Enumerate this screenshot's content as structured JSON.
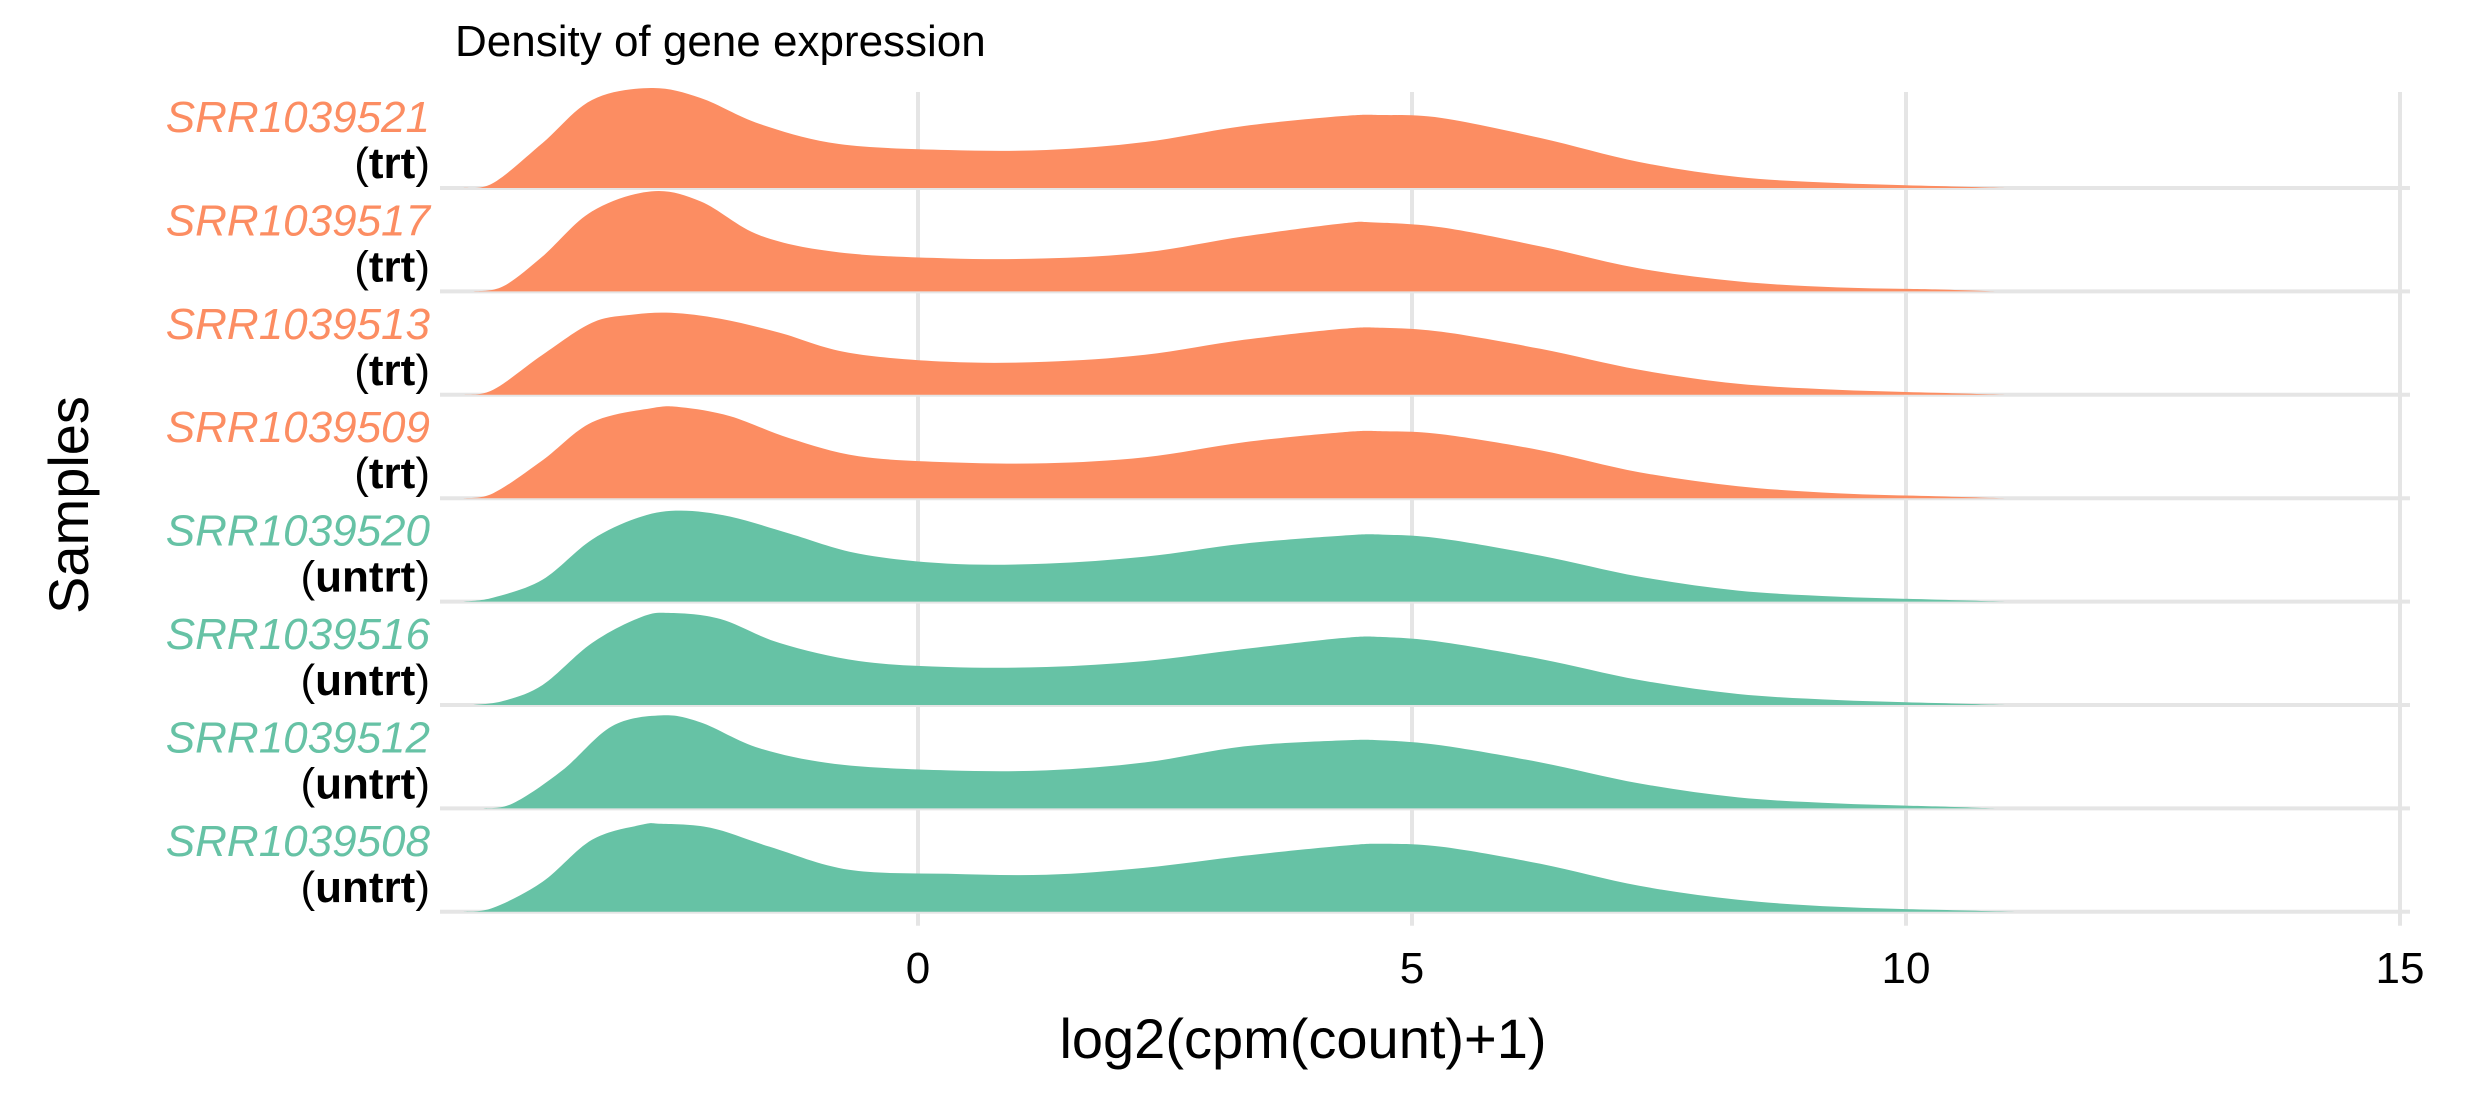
{
  "chart_data": {
    "type": "area",
    "title": "Density of gene expression",
    "xlabel": "log2(cpm(count)+1)",
    "ylabel": "Samples",
    "xlim": [
      -4.6,
      15.2
    ],
    "x_ticks": [
      0,
      5,
      10,
      15
    ],
    "x_tick_labels": [
      "0",
      "5",
      "10",
      "15"
    ],
    "grid": true,
    "legend": "none",
    "colors": {
      "trt": "#FC8D62",
      "untrt": "#66C2A5",
      "grid": "#E5E5E5",
      "text": "#000000"
    },
    "series": [
      {
        "name": "SRR1039521",
        "group": "trt",
        "x_range": [
          -4.6,
          11.0
        ],
        "points": [
          [
            -4.6,
            0.0
          ],
          [
            -4.3,
            0.05
          ],
          [
            -3.8,
            0.45
          ],
          [
            -3.3,
            0.88
          ],
          [
            -2.7,
            1.0
          ],
          [
            -2.2,
            0.9
          ],
          [
            -1.6,
            0.64
          ],
          [
            -0.8,
            0.44
          ],
          [
            0.3,
            0.38
          ],
          [
            1.3,
            0.38
          ],
          [
            2.3,
            0.46
          ],
          [
            3.3,
            0.62
          ],
          [
            4.3,
            0.72
          ],
          [
            4.7,
            0.73
          ],
          [
            5.3,
            0.7
          ],
          [
            6.3,
            0.5
          ],
          [
            7.3,
            0.26
          ],
          [
            8.3,
            0.11
          ],
          [
            9.3,
            0.05
          ],
          [
            10.3,
            0.02
          ],
          [
            11.0,
            0.0
          ]
        ]
      },
      {
        "name": "SRR1039517",
        "group": "trt",
        "x_range": [
          -4.5,
          10.9
        ],
        "points": [
          [
            -4.5,
            0.0
          ],
          [
            -4.2,
            0.05
          ],
          [
            -3.8,
            0.35
          ],
          [
            -3.3,
            0.8
          ],
          [
            -2.7,
            1.0
          ],
          [
            -2.2,
            0.9
          ],
          [
            -1.6,
            0.56
          ],
          [
            -0.8,
            0.39
          ],
          [
            0.3,
            0.33
          ],
          [
            1.3,
            0.33
          ],
          [
            2.3,
            0.39
          ],
          [
            3.3,
            0.55
          ],
          [
            4.3,
            0.68
          ],
          [
            4.6,
            0.69
          ],
          [
            5.3,
            0.64
          ],
          [
            6.3,
            0.45
          ],
          [
            7.3,
            0.23
          ],
          [
            8.3,
            0.1
          ],
          [
            9.3,
            0.04
          ],
          [
            10.3,
            0.02
          ],
          [
            10.9,
            0.0
          ]
        ]
      },
      {
        "name": "SRR1039513",
        "group": "trt",
        "x_range": [
          -4.6,
          11.0
        ],
        "points": [
          [
            -4.6,
            0.0
          ],
          [
            -4.3,
            0.05
          ],
          [
            -3.8,
            0.4
          ],
          [
            -3.3,
            0.72
          ],
          [
            -2.9,
            0.8
          ],
          [
            -2.5,
            0.82
          ],
          [
            -2.0,
            0.76
          ],
          [
            -1.4,
            0.62
          ],
          [
            -0.7,
            0.42
          ],
          [
            0.3,
            0.33
          ],
          [
            1.3,
            0.33
          ],
          [
            2.3,
            0.4
          ],
          [
            3.3,
            0.55
          ],
          [
            4.3,
            0.66
          ],
          [
            4.7,
            0.67
          ],
          [
            5.3,
            0.63
          ],
          [
            6.3,
            0.46
          ],
          [
            7.3,
            0.25
          ],
          [
            8.3,
            0.11
          ],
          [
            9.3,
            0.05
          ],
          [
            10.3,
            0.02
          ],
          [
            11.0,
            0.0
          ]
        ]
      },
      {
        "name": "SRR1039509",
        "group": "trt",
        "x_range": [
          -4.6,
          11.0
        ],
        "points": [
          [
            -4.6,
            0.0
          ],
          [
            -4.3,
            0.05
          ],
          [
            -3.8,
            0.38
          ],
          [
            -3.3,
            0.76
          ],
          [
            -2.7,
            0.9
          ],
          [
            -2.4,
            0.91
          ],
          [
            -1.9,
            0.82
          ],
          [
            -1.3,
            0.6
          ],
          [
            -0.6,
            0.42
          ],
          [
            0.3,
            0.36
          ],
          [
            1.3,
            0.35
          ],
          [
            2.3,
            0.41
          ],
          [
            3.3,
            0.56
          ],
          [
            4.3,
            0.66
          ],
          [
            4.7,
            0.67
          ],
          [
            5.3,
            0.64
          ],
          [
            6.3,
            0.48
          ],
          [
            7.3,
            0.26
          ],
          [
            8.3,
            0.12
          ],
          [
            9.3,
            0.05
          ],
          [
            10.3,
            0.02
          ],
          [
            11.0,
            0.0
          ]
        ]
      },
      {
        "name": "SRR1039520",
        "group": "untrt",
        "x_range": [
          -4.6,
          11.0
        ],
        "points": [
          [
            -4.6,
            0.0
          ],
          [
            -4.3,
            0.04
          ],
          [
            -3.8,
            0.22
          ],
          [
            -3.3,
            0.62
          ],
          [
            -2.8,
            0.85
          ],
          [
            -2.4,
            0.91
          ],
          [
            -1.9,
            0.85
          ],
          [
            -1.3,
            0.68
          ],
          [
            -0.6,
            0.48
          ],
          [
            0.3,
            0.38
          ],
          [
            1.3,
            0.38
          ],
          [
            2.3,
            0.45
          ],
          [
            3.3,
            0.58
          ],
          [
            4.3,
            0.66
          ],
          [
            4.7,
            0.67
          ],
          [
            5.3,
            0.63
          ],
          [
            6.3,
            0.46
          ],
          [
            7.3,
            0.25
          ],
          [
            8.3,
            0.11
          ],
          [
            9.3,
            0.05
          ],
          [
            10.3,
            0.02
          ],
          [
            11.0,
            0.0
          ]
        ]
      },
      {
        "name": "SRR1039516",
        "group": "untrt",
        "x_range": [
          -4.5,
          11.0
        ],
        "points": [
          [
            -4.5,
            0.0
          ],
          [
            -4.2,
            0.04
          ],
          [
            -3.8,
            0.2
          ],
          [
            -3.3,
            0.62
          ],
          [
            -2.8,
            0.88
          ],
          [
            -2.5,
            0.92
          ],
          [
            -2.0,
            0.86
          ],
          [
            -1.4,
            0.62
          ],
          [
            -0.6,
            0.44
          ],
          [
            0.3,
            0.38
          ],
          [
            1.3,
            0.38
          ],
          [
            2.3,
            0.44
          ],
          [
            3.3,
            0.56
          ],
          [
            4.3,
            0.67
          ],
          [
            4.7,
            0.68
          ],
          [
            5.3,
            0.63
          ],
          [
            6.3,
            0.46
          ],
          [
            7.3,
            0.25
          ],
          [
            8.3,
            0.11
          ],
          [
            9.3,
            0.05
          ],
          [
            10.3,
            0.02
          ],
          [
            11.0,
            0.0
          ]
        ]
      },
      {
        "name": "SRR1039512",
        "group": "untrt",
        "x_range": [
          -4.4,
          10.9
        ],
        "points": [
          [
            -4.4,
            0.0
          ],
          [
            -4.1,
            0.05
          ],
          [
            -3.6,
            0.38
          ],
          [
            -3.1,
            0.82
          ],
          [
            -2.6,
            0.93
          ],
          [
            -2.2,
            0.86
          ],
          [
            -1.6,
            0.6
          ],
          [
            -0.8,
            0.44
          ],
          [
            0.3,
            0.38
          ],
          [
            1.3,
            0.38
          ],
          [
            2.3,
            0.46
          ],
          [
            3.3,
            0.62
          ],
          [
            4.3,
            0.68
          ],
          [
            4.7,
            0.68
          ],
          [
            5.3,
            0.63
          ],
          [
            6.3,
            0.46
          ],
          [
            7.3,
            0.25
          ],
          [
            8.3,
            0.11
          ],
          [
            9.3,
            0.05
          ],
          [
            10.3,
            0.02
          ],
          [
            10.9,
            0.0
          ]
        ]
      },
      {
        "name": "SRR1039508",
        "group": "untrt",
        "x_range": [
          -4.6,
          11.1
        ],
        "points": [
          [
            -4.6,
            0.0
          ],
          [
            -4.3,
            0.04
          ],
          [
            -3.8,
            0.3
          ],
          [
            -3.3,
            0.72
          ],
          [
            -2.8,
            0.87
          ],
          [
            -2.6,
            0.88
          ],
          [
            -2.1,
            0.84
          ],
          [
            -1.5,
            0.65
          ],
          [
            -0.7,
            0.42
          ],
          [
            0.3,
            0.38
          ],
          [
            1.3,
            0.37
          ],
          [
            2.3,
            0.44
          ],
          [
            3.3,
            0.56
          ],
          [
            4.3,
            0.66
          ],
          [
            4.7,
            0.68
          ],
          [
            5.3,
            0.65
          ],
          [
            6.3,
            0.48
          ],
          [
            7.3,
            0.26
          ],
          [
            8.3,
            0.12
          ],
          [
            9.3,
            0.05
          ],
          [
            10.3,
            0.02
          ],
          [
            11.1,
            0.0
          ]
        ]
      }
    ]
  }
}
